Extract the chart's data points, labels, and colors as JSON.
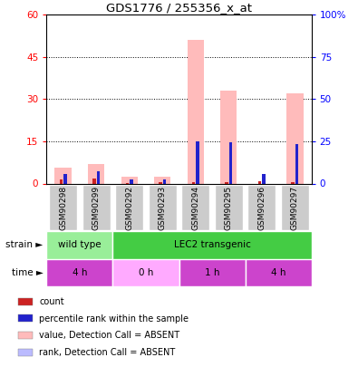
{
  "title": "GDS1776 / 255356_x_at",
  "samples": [
    "GSM90298",
    "GSM90299",
    "GSM90292",
    "GSM90293",
    "GSM90294",
    "GSM90295",
    "GSM90296",
    "GSM90297"
  ],
  "count_values": [
    1.5,
    1.8,
    0.3,
    0.4,
    0.5,
    0.5,
    0.8,
    0.5
  ],
  "rank_values": [
    3.5,
    4.5,
    1.5,
    1.5,
    15.0,
    14.5,
    3.5,
    14.0
  ],
  "value_absent": [
    5.5,
    7.0,
    2.5,
    2.5,
    51.0,
    33.0,
    0.0,
    32.0
  ],
  "ylim_left": [
    0,
    60
  ],
  "ylim_right": [
    0,
    100
  ],
  "yticks_left": [
    0,
    15,
    30,
    45,
    60
  ],
  "yticks_right": [
    0,
    25,
    50,
    75,
    100
  ],
  "yticklabels_right": [
    "0",
    "25",
    "50",
    "75",
    "100%"
  ],
  "color_count": "#cc2222",
  "color_rank": "#2222cc",
  "color_value_absent": "#ffbbbb",
  "color_rank_absent": "#bbbbff",
  "xtick_bg": "#cccccc",
  "strain_labels": [
    {
      "text": "wild type",
      "start": 0,
      "end": 2,
      "color": "#99ee99"
    },
    {
      "text": "LEC2 transgenic",
      "start": 2,
      "end": 8,
      "color": "#44cc44"
    }
  ],
  "time_labels": [
    {
      "text": "4 h",
      "start": 0,
      "end": 2,
      "color": "#cc44cc"
    },
    {
      "text": "0 h",
      "start": 2,
      "end": 4,
      "color": "#ffaaff"
    },
    {
      "text": "1 h",
      "start": 4,
      "end": 6,
      "color": "#cc44cc"
    },
    {
      "text": "4 h",
      "start": 6,
      "end": 8,
      "color": "#cc44cc"
    }
  ],
  "legend_items": [
    {
      "label": "count",
      "color": "#cc2222"
    },
    {
      "label": "percentile rank within the sample",
      "color": "#2222cc"
    },
    {
      "label": "value, Detection Call = ABSENT",
      "color": "#ffbbbb"
    },
    {
      "label": "rank, Detection Call = ABSENT",
      "color": "#bbbbff"
    }
  ]
}
